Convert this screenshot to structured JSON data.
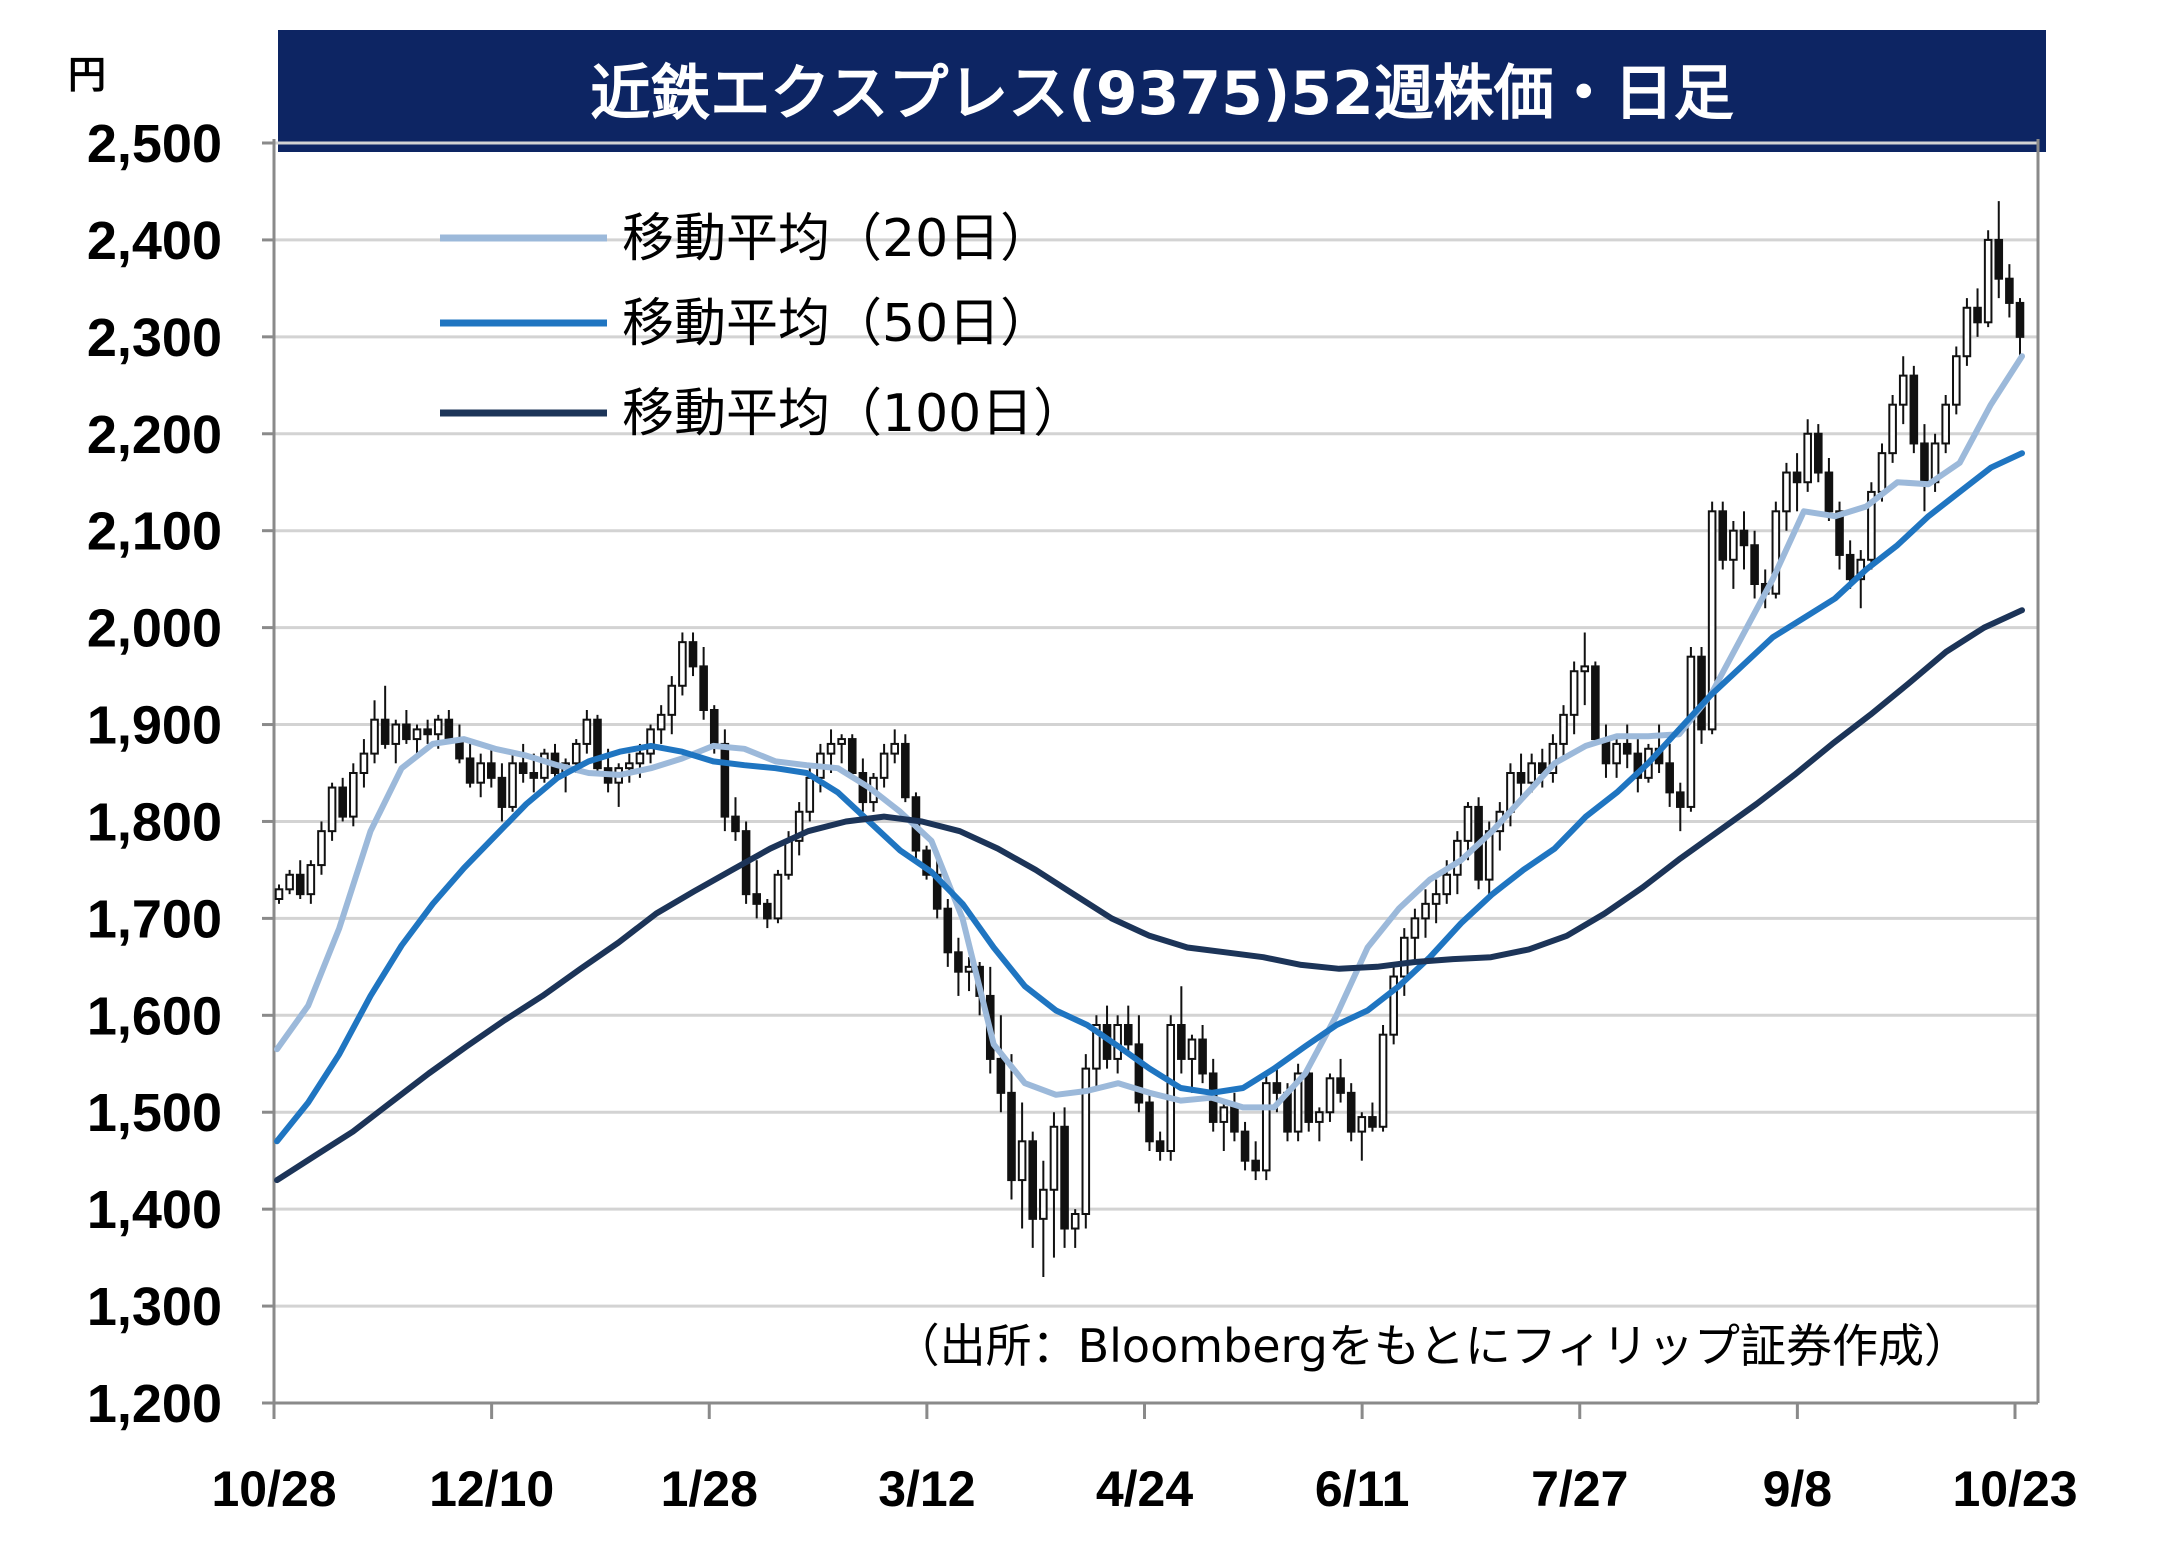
{
  "chart_data": {
    "type": "candlestick",
    "title": "近鉄エクスプレス(9375)52週株価・日足",
    "unit_label": "円",
    "source": "（出所：Bloombergをもとにフィリップ証券作成）",
    "ylim": [
      1200,
      2500
    ],
    "y_ticks": [
      1200,
      1300,
      1400,
      1500,
      1600,
      1700,
      1800,
      1900,
      2000,
      2100,
      2200,
      2300,
      2400,
      2500
    ],
    "y_tick_labels": [
      "1,200",
      "1,300",
      "1,400",
      "1,500",
      "1,600",
      "1,700",
      "1,800",
      "1,900",
      "2,000",
      "2,100",
      "2,200",
      "2,300",
      "2,400",
      "2,500"
    ],
    "x_ticks": [
      "10/28",
      "12/10",
      "1/28",
      "3/12",
      "4/24",
      "6/11",
      "7/27",
      "9/8",
      "10/23"
    ],
    "grid": true,
    "legend_position": "top-left",
    "series": [
      {
        "name": "移動平均（20日）",
        "color": "#9cb9da",
        "values": [
          1565,
          1610,
          1690,
          1790,
          1855,
          1880,
          1885,
          1875,
          1868,
          1858,
          1850,
          1848,
          1855,
          1865,
          1878,
          1875,
          1862,
          1858,
          1855,
          1835,
          1810,
          1780,
          1700,
          1570,
          1530,
          1518,
          1522,
          1530,
          1520,
          1512,
          1515,
          1505,
          1505,
          1540,
          1600,
          1670,
          1710,
          1740,
          1760,
          1790,
          1825,
          1860,
          1878,
          1888,
          1888,
          1890,
          1930,
          1990,
          2050,
          2120,
          2115,
          2125,
          2150,
          2148,
          2170,
          2230,
          2280
        ]
      },
      {
        "name": "移動平均（50日）",
        "color": "#1f75c1",
        "values": [
          1470,
          1510,
          1560,
          1620,
          1672,
          1715,
          1752,
          1785,
          1818,
          1845,
          1862,
          1872,
          1878,
          1872,
          1862,
          1858,
          1855,
          1850,
          1830,
          1800,
          1770,
          1748,
          1715,
          1670,
          1630,
          1605,
          1590,
          1568,
          1545,
          1525,
          1520,
          1525,
          1545,
          1568,
          1590,
          1605,
          1630,
          1660,
          1695,
          1725,
          1750,
          1772,
          1805,
          1830,
          1860,
          1895,
          1930,
          1960,
          1990,
          2010,
          2030,
          2060,
          2085,
          2115,
          2140,
          2165,
          2180
        ]
      },
      {
        "name": "移動平均（100日）",
        "color": "#1c3458",
        "values": [
          1430,
          1455,
          1480,
          1510,
          1540,
          1568,
          1595,
          1620,
          1648,
          1675,
          1705,
          1728,
          1750,
          1772,
          1790,
          1800,
          1805,
          1800,
          1790,
          1772,
          1750,
          1725,
          1700,
          1682,
          1670,
          1665,
          1660,
          1652,
          1648,
          1650,
          1655,
          1658,
          1660,
          1668,
          1682,
          1705,
          1732,
          1762,
          1790,
          1818,
          1848,
          1880,
          1910,
          1942,
          1975,
          2000,
          2018
        ]
      }
    ],
    "candles": {
      "note": "daily OHLC in yen, read approximately from chart",
      "ohlc": [
        [
          1720,
          1735,
          1715,
          1730
        ],
        [
          1730,
          1750,
          1725,
          1745
        ],
        [
          1745,
          1760,
          1720,
          1725
        ],
        [
          1725,
          1760,
          1715,
          1755
        ],
        [
          1755,
          1800,
          1745,
          1790
        ],
        [
          1790,
          1840,
          1780,
          1835
        ],
        [
          1835,
          1845,
          1800,
          1805
        ],
        [
          1805,
          1860,
          1795,
          1850
        ],
        [
          1850,
          1885,
          1835,
          1870
        ],
        [
          1870,
          1925,
          1860,
          1905
        ],
        [
          1905,
          1940,
          1875,
          1880
        ],
        [
          1880,
          1905,
          1860,
          1900
        ],
        [
          1900,
          1915,
          1880,
          1885
        ],
        [
          1885,
          1900,
          1865,
          1895
        ],
        [
          1895,
          1905,
          1880,
          1890
        ],
        [
          1890,
          1910,
          1875,
          1905
        ],
        [
          1905,
          1915,
          1880,
          1885
        ],
        [
          1885,
          1900,
          1860,
          1865
        ],
        [
          1865,
          1880,
          1835,
          1840
        ],
        [
          1840,
          1870,
          1825,
          1860
        ],
        [
          1860,
          1875,
          1835,
          1845
        ],
        [
          1845,
          1860,
          1800,
          1815
        ],
        [
          1815,
          1870,
          1810,
          1860
        ],
        [
          1860,
          1880,
          1840,
          1850
        ],
        [
          1850,
          1870,
          1830,
          1845
        ],
        [
          1845,
          1875,
          1840,
          1870
        ],
        [
          1870,
          1880,
          1845,
          1850
        ],
        [
          1850,
          1865,
          1830,
          1860
        ],
        [
          1860,
          1885,
          1850,
          1880
        ],
        [
          1880,
          1915,
          1870,
          1905
        ],
        [
          1905,
          1910,
          1850,
          1855
        ],
        [
          1855,
          1875,
          1830,
          1840
        ],
        [
          1840,
          1860,
          1815,
          1855
        ],
        [
          1855,
          1870,
          1840,
          1860
        ],
        [
          1860,
          1880,
          1845,
          1870
        ],
        [
          1870,
          1900,
          1860,
          1895
        ],
        [
          1895,
          1920,
          1880,
          1910
        ],
        [
          1910,
          1950,
          1890,
          1940
        ],
        [
          1940,
          1995,
          1930,
          1985
        ],
        [
          1985,
          1995,
          1950,
          1960
        ],
        [
          1960,
          1980,
          1905,
          1915
        ],
        [
          1915,
          1920,
          1870,
          1880
        ],
        [
          1880,
          1895,
          1790,
          1805
        ],
        [
          1805,
          1825,
          1780,
          1790
        ],
        [
          1790,
          1800,
          1715,
          1725
        ],
        [
          1725,
          1760,
          1700,
          1715
        ],
        [
          1715,
          1720,
          1690,
          1700
        ],
        [
          1700,
          1750,
          1695,
          1745
        ],
        [
          1745,
          1790,
          1740,
          1780
        ],
        [
          1780,
          1820,
          1765,
          1810
        ],
        [
          1810,
          1855,
          1800,
          1845
        ],
        [
          1845,
          1880,
          1830,
          1870
        ],
        [
          1870,
          1895,
          1850,
          1880
        ],
        [
          1880,
          1890,
          1860,
          1885
        ],
        [
          1885,
          1890,
          1845,
          1850
        ],
        [
          1850,
          1865,
          1810,
          1820
        ],
        [
          1820,
          1850,
          1810,
          1845
        ],
        [
          1845,
          1880,
          1835,
          1870
        ],
        [
          1870,
          1895,
          1860,
          1880
        ],
        [
          1880,
          1890,
          1820,
          1825
        ],
        [
          1825,
          1830,
          1760,
          1770
        ],
        [
          1770,
          1775,
          1740,
          1745
        ],
        [
          1745,
          1760,
          1700,
          1710
        ],
        [
          1710,
          1720,
          1650,
          1665
        ],
        [
          1665,
          1680,
          1620,
          1645
        ],
        [
          1645,
          1660,
          1625,
          1650
        ],
        [
          1650,
          1655,
          1600,
          1620
        ],
        [
          1620,
          1650,
          1540,
          1555
        ],
        [
          1555,
          1600,
          1500,
          1520
        ],
        [
          1520,
          1560,
          1410,
          1430
        ],
        [
          1430,
          1510,
          1380,
          1470
        ],
        [
          1470,
          1480,
          1360,
          1390
        ],
        [
          1390,
          1450,
          1330,
          1420
        ],
        [
          1420,
          1500,
          1350,
          1485
        ],
        [
          1485,
          1505,
          1360,
          1380
        ],
        [
          1380,
          1400,
          1360,
          1395
        ],
        [
          1395,
          1560,
          1380,
          1545
        ],
        [
          1545,
          1600,
          1525,
          1590
        ],
        [
          1590,
          1610,
          1545,
          1555
        ],
        [
          1555,
          1600,
          1540,
          1590
        ],
        [
          1590,
          1610,
          1560,
          1570
        ],
        [
          1570,
          1600,
          1500,
          1510
        ],
        [
          1510,
          1520,
          1460,
          1470
        ],
        [
          1470,
          1480,
          1450,
          1460
        ],
        [
          1460,
          1600,
          1450,
          1590
        ],
        [
          1590,
          1630,
          1540,
          1555
        ],
        [
          1555,
          1580,
          1520,
          1575
        ],
        [
          1575,
          1590,
          1530,
          1540
        ],
        [
          1540,
          1555,
          1480,
          1490
        ],
        [
          1490,
          1510,
          1460,
          1505
        ],
        [
          1505,
          1520,
          1470,
          1480
        ],
        [
          1480,
          1490,
          1440,
          1450
        ],
        [
          1450,
          1470,
          1430,
          1440
        ],
        [
          1440,
          1540,
          1430,
          1530
        ],
        [
          1530,
          1545,
          1500,
          1520
        ],
        [
          1520,
          1530,
          1470,
          1480
        ],
        [
          1480,
          1550,
          1470,
          1540
        ],
        [
          1540,
          1550,
          1480,
          1490
        ],
        [
          1490,
          1505,
          1470,
          1500
        ],
        [
          1500,
          1540,
          1490,
          1535
        ],
        [
          1535,
          1555,
          1510,
          1520
        ],
        [
          1520,
          1530,
          1470,
          1480
        ],
        [
          1480,
          1500,
          1450,
          1495
        ],
        [
          1495,
          1510,
          1480,
          1485
        ],
        [
          1485,
          1590,
          1480,
          1580
        ],
        [
          1580,
          1650,
          1570,
          1640
        ],
        [
          1640,
          1690,
          1620,
          1680
        ],
        [
          1680,
          1710,
          1655,
          1700
        ],
        [
          1700,
          1730,
          1680,
          1715
        ],
        [
          1715,
          1740,
          1695,
          1725
        ],
        [
          1725,
          1760,
          1715,
          1745
        ],
        [
          1745,
          1790,
          1725,
          1780
        ],
        [
          1780,
          1820,
          1760,
          1815
        ],
        [
          1815,
          1825,
          1730,
          1740
        ],
        [
          1740,
          1800,
          1720,
          1790
        ],
        [
          1790,
          1820,
          1770,
          1810
        ],
        [
          1810,
          1860,
          1795,
          1850
        ],
        [
          1850,
          1870,
          1820,
          1840
        ],
        [
          1840,
          1870,
          1830,
          1860
        ],
        [
          1860,
          1875,
          1835,
          1850
        ],
        [
          1850,
          1890,
          1840,
          1880
        ],
        [
          1880,
          1920,
          1865,
          1910
        ],
        [
          1910,
          1965,
          1890,
          1955
        ],
        [
          1955,
          1995,
          1920,
          1960
        ],
        [
          1960,
          1965,
          1880,
          1885
        ],
        [
          1885,
          1900,
          1845,
          1860
        ],
        [
          1860,
          1890,
          1845,
          1880
        ],
        [
          1880,
          1900,
          1855,
          1870
        ],
        [
          1870,
          1885,
          1830,
          1845
        ],
        [
          1845,
          1880,
          1840,
          1875
        ],
        [
          1875,
          1900,
          1850,
          1860
        ],
        [
          1860,
          1880,
          1815,
          1830
        ],
        [
          1830,
          1840,
          1790,
          1815
        ],
        [
          1815,
          1980,
          1810,
          1970
        ],
        [
          1970,
          1980,
          1880,
          1895
        ],
        [
          1895,
          2130,
          1890,
          2120
        ],
        [
          2120,
          2130,
          2060,
          2070
        ],
        [
          2070,
          2110,
          2040,
          2100
        ],
        [
          2100,
          2120,
          2060,
          2085
        ],
        [
          2085,
          2100,
          2030,
          2045
        ],
        [
          2045,
          2060,
          2020,
          2035
        ],
        [
          2035,
          2130,
          2030,
          2120
        ],
        [
          2120,
          2170,
          2100,
          2160
        ],
        [
          2160,
          2180,
          2120,
          2150
        ],
        [
          2150,
          2215,
          2140,
          2200
        ],
        [
          2200,
          2210,
          2150,
          2160
        ],
        [
          2160,
          2175,
          2110,
          2120
        ],
        [
          2120,
          2130,
          2060,
          2075
        ],
        [
          2075,
          2090,
          2040,
          2050
        ],
        [
          2050,
          2080,
          2020,
          2070
        ],
        [
          2070,
          2150,
          2060,
          2140
        ],
        [
          2140,
          2190,
          2130,
          2180
        ],
        [
          2180,
          2240,
          2170,
          2230
        ],
        [
          2230,
          2280,
          2210,
          2260
        ],
        [
          2260,
          2270,
          2180,
          2190
        ],
        [
          2190,
          2210,
          2120,
          2150
        ],
        [
          2150,
          2200,
          2140,
          2190
        ],
        [
          2190,
          2240,
          2180,
          2230
        ],
        [
          2230,
          2290,
          2220,
          2280
        ],
        [
          2280,
          2340,
          2270,
          2330
        ],
        [
          2330,
          2350,
          2300,
          2315
        ],
        [
          2315,
          2410,
          2310,
          2400
        ],
        [
          2400,
          2440,
          2340,
          2360
        ],
        [
          2360,
          2375,
          2320,
          2335
        ],
        [
          2335,
          2340,
          2280,
          2300
        ]
      ]
    }
  }
}
